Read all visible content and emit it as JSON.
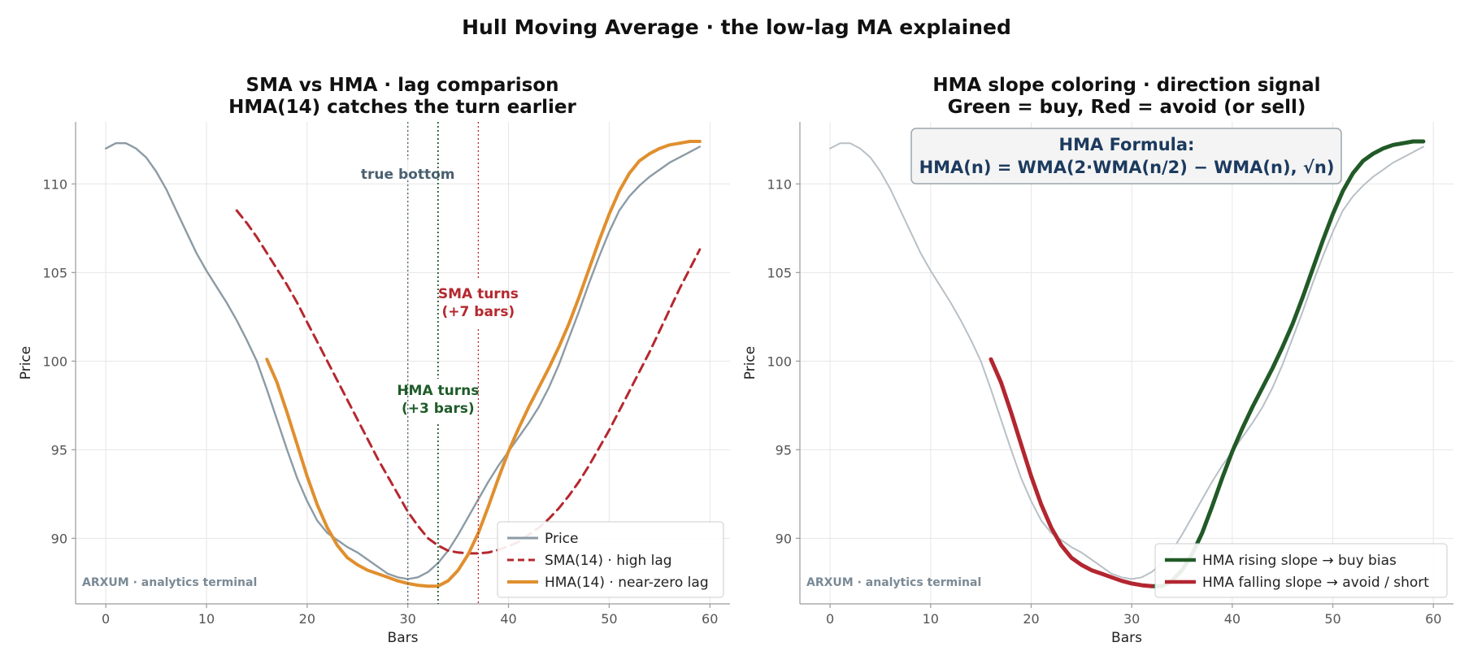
{
  "title": "Hull Moving Average · the low-lag MA explained",
  "chart_data": [
    {
      "type": "line",
      "title_lines": [
        "SMA vs HMA · lag comparison",
        "HMA(14) catches the turn earlier"
      ],
      "xlabel": "Bars",
      "ylabel": "Price",
      "xlim": [
        -3,
        62
      ],
      "ylim": [
        86.3,
        113.5
      ],
      "xticks": [
        0,
        10,
        20,
        30,
        40,
        50,
        60
      ],
      "yticks": [
        90,
        95,
        100,
        105,
        110
      ],
      "grid": true,
      "legend_position": "lower-right",
      "watermark": "ARXUM · analytics terminal",
      "colors": {
        "price": "#8c9ba5",
        "sma": "#b5282f",
        "hma": "#e08f2e",
        "bottom": "#4a6070",
        "hma_turn": "#1f5c2a",
        "sma_turn": "#b5282f"
      },
      "series": [
        {
          "name": "Price",
          "key": "price",
          "style": "solid",
          "x": [
            0,
            1,
            2,
            3,
            4,
            5,
            6,
            7,
            8,
            9,
            10,
            11,
            12,
            13,
            14,
            15,
            16,
            17,
            18,
            19,
            20,
            21,
            22,
            23,
            24,
            25,
            26,
            27,
            28,
            29,
            30,
            31,
            32,
            33,
            34,
            35,
            36,
            37,
            38,
            39,
            40,
            41,
            42,
            43,
            44,
            45,
            46,
            47,
            48,
            49,
            50,
            51,
            52,
            53,
            54,
            55,
            56,
            57,
            58,
            59
          ],
          "y": [
            112.0,
            112.3,
            112.3,
            112.0,
            111.5,
            110.7,
            109.7,
            108.5,
            107.3,
            106.1,
            105.1,
            104.2,
            103.3,
            102.3,
            101.2,
            100.0,
            98.4,
            96.7,
            95.0,
            93.4,
            92.1,
            91.0,
            90.3,
            89.9,
            89.5,
            89.2,
            88.8,
            88.4,
            88.0,
            87.8,
            87.7,
            87.8,
            88.1,
            88.6,
            89.3,
            90.2,
            91.2,
            92.2,
            93.2,
            94.1,
            94.9,
            95.7,
            96.5,
            97.4,
            98.5,
            99.8,
            101.3,
            102.8,
            104.4,
            105.9,
            107.3,
            108.5,
            109.3,
            109.9,
            110.4,
            110.8,
            111.2,
            111.5,
            111.8,
            112.1
          ]
        },
        {
          "name": "SMA(14) · high lag",
          "key": "sma",
          "style": "dashed",
          "x": [
            13,
            14,
            15,
            16,
            17,
            18,
            19,
            20,
            21,
            22,
            23,
            24,
            25,
            26,
            27,
            28,
            29,
            30,
            31,
            32,
            33,
            34,
            35,
            36,
            37,
            38,
            39,
            40,
            41,
            42,
            43,
            44,
            45,
            46,
            47,
            48,
            49,
            50,
            51,
            52,
            53,
            54,
            55,
            56,
            57,
            58,
            59
          ],
          "y": [
            108.5,
            107.8,
            107.0,
            106.1,
            105.2,
            104.3,
            103.3,
            102.2,
            101.1,
            100.0,
            98.9,
            97.8,
            96.7,
            95.6,
            94.5,
            93.5,
            92.5,
            91.5,
            90.7,
            90.0,
            89.6,
            89.3,
            89.2,
            89.15,
            89.15,
            89.2,
            89.35,
            89.55,
            89.8,
            90.2,
            90.6,
            91.1,
            91.7,
            92.4,
            93.2,
            94.1,
            95.1,
            96.1,
            97.2,
            98.3,
            99.4,
            100.5,
            101.7,
            102.9,
            104.1,
            105.2,
            106.3
          ]
        },
        {
          "name": "HMA(14) · near-zero lag",
          "key": "hma",
          "style": "solid",
          "x": [
            16,
            17,
            18,
            19,
            20,
            21,
            22,
            23,
            24,
            25,
            26,
            27,
            28,
            29,
            30,
            31,
            32,
            33,
            34,
            35,
            36,
            37,
            38,
            39,
            40,
            41,
            42,
            43,
            44,
            45,
            46,
            47,
            48,
            49,
            50,
            51,
            52,
            53,
            54,
            55,
            56,
            57,
            58,
            59
          ],
          "y": [
            100.1,
            98.8,
            97.1,
            95.3,
            93.5,
            91.9,
            90.6,
            89.6,
            88.9,
            88.5,
            88.2,
            88.0,
            87.8,
            87.6,
            87.45,
            87.35,
            87.3,
            87.3,
            87.6,
            88.2,
            89.1,
            90.3,
            91.8,
            93.4,
            94.9,
            96.2,
            97.4,
            98.5,
            99.6,
            100.8,
            102.1,
            103.6,
            105.2,
            106.8,
            108.3,
            109.6,
            110.6,
            111.3,
            111.7,
            112.0,
            112.2,
            112.3,
            112.4,
            112.4
          ]
        }
      ],
      "annotations": [
        {
          "text": "true bottom",
          "x": 30,
          "color_key": "bottom"
        },
        {
          "text": [
            "HMA turns",
            "(+3 bars)"
          ],
          "x": 33,
          "color_key": "hma_turn"
        },
        {
          "text": [
            "SMA turns",
            "(+7 bars)"
          ],
          "x": 37,
          "color_key": "sma_turn"
        }
      ]
    },
    {
      "type": "line",
      "title_lines": [
        "HMA slope coloring · direction signal",
        "Green = buy, Red = avoid (or sell)"
      ],
      "xlabel": "Bars",
      "ylabel": "Price",
      "xlim": [
        -3,
        62
      ],
      "ylim": [
        86.3,
        113.5
      ],
      "xticks": [
        0,
        10,
        20,
        30,
        40,
        50,
        60
      ],
      "yticks": [
        90,
        95,
        100,
        105,
        110
      ],
      "grid": true,
      "legend_position": "lower-right",
      "watermark": "ARXUM · analytics terminal",
      "formula_box": {
        "title": "HMA Formula:",
        "formula": "HMA(n) = WMA(2·WMA(n/2) − WMA(n), √n)"
      },
      "colors": {
        "price": "#b8c0c6",
        "rising": "#215a27",
        "falling": "#b32630"
      },
      "series": [
        {
          "name": "Price",
          "key": "price",
          "style": "solid",
          "ref_series": 0
        },
        {
          "name": "HMA rising slope → buy bias",
          "key": "rising",
          "style": "solid",
          "x": [
            32,
            33,
            34,
            35,
            36,
            37,
            38,
            39,
            40,
            41,
            42,
            43,
            44,
            45,
            46,
            47,
            48,
            49,
            50,
            51,
            52,
            53,
            54,
            55,
            56,
            57,
            58,
            59
          ],
          "y": [
            87.3,
            87.3,
            87.6,
            88.2,
            89.1,
            90.3,
            91.8,
            93.4,
            94.9,
            96.2,
            97.4,
            98.5,
            99.6,
            100.8,
            102.1,
            103.6,
            105.2,
            106.8,
            108.3,
            109.6,
            110.6,
            111.3,
            111.7,
            112.0,
            112.2,
            112.3,
            112.4,
            112.4
          ]
        },
        {
          "name": "HMA falling slope → avoid / short",
          "key": "falling",
          "style": "solid",
          "x": [
            16,
            17,
            18,
            19,
            20,
            21,
            22,
            23,
            24,
            25,
            26,
            27,
            28,
            29,
            30,
            31,
            32
          ],
          "y": [
            100.1,
            98.8,
            97.1,
            95.3,
            93.5,
            91.9,
            90.6,
            89.6,
            88.9,
            88.5,
            88.2,
            88.0,
            87.8,
            87.6,
            87.45,
            87.35,
            87.3
          ]
        }
      ]
    }
  ]
}
